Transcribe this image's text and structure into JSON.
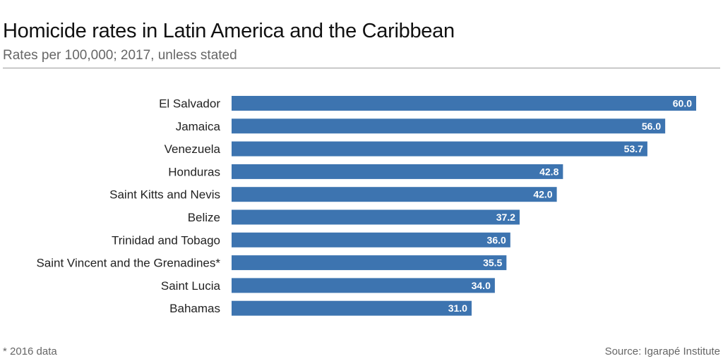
{
  "header": {
    "title": "Homicide rates in Latin America and the Caribbean",
    "subtitle": "Rates per 100,000; 2017, unless stated"
  },
  "footer": {
    "footnote": "* 2016 data",
    "source": "Source: Igarapé Institute"
  },
  "colors": {
    "bar": "#3d74b0",
    "value_label": "#ffffff",
    "category_label": "#222222"
  },
  "chart_data": {
    "type": "bar",
    "orientation": "horizontal",
    "title": "Homicide rates in Latin America and the Caribbean",
    "subtitle": "Rates per 100,000; 2017, unless stated",
    "categories": [
      "El Salvador",
      "Jamaica",
      "Venezuela",
      "Honduras",
      "Saint Kitts and Nevis",
      "Belize",
      "Trinidad and Tobago",
      "Saint Vincent and the Grenadines*",
      "Saint Lucia",
      "Bahamas"
    ],
    "values": [
      60.0,
      56.0,
      53.7,
      42.8,
      42.0,
      37.2,
      36.0,
      35.5,
      34.0,
      31.0
    ],
    "value_labels": [
      "60.0",
      "56.0",
      "53.7",
      "42.8",
      "42.0",
      "37.2",
      "36.0",
      "35.5",
      "34.0",
      "31.0"
    ],
    "xlim": [
      0,
      60
    ],
    "grid": false,
    "legend": "none"
  }
}
